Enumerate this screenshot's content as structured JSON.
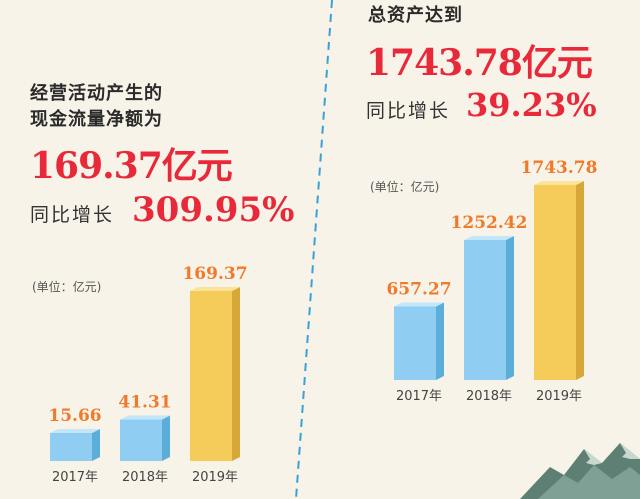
{
  "left": {
    "title_line1": "经营活动产生的",
    "title_line2": "现金流量净额为",
    "headline": "169.37亿元",
    "growth_label": "同比增长",
    "growth_value": "309.95%",
    "unit": "(单位：亿元)"
  },
  "right": {
    "title": "总资产达到",
    "headline": "1743.78亿元",
    "growth_label": "同比增长",
    "growth_value": "39.23%",
    "unit": "(单位：亿元)"
  },
  "colors": {
    "accent_red": "#e8293a",
    "value_orange": "#f07a2a",
    "bar_blue": "#8fcdf2",
    "bar_gold": "#f5cc5a",
    "divider_blue": "#3aa0d8"
  },
  "chart_data": [
    {
      "type": "bar",
      "title": "",
      "categories": [
        "2017年",
        "2018年",
        "2019年"
      ],
      "values": [
        15.66,
        41.31,
        169.37
      ],
      "value_labels": [
        "15.66",
        "41.31",
        "169.37"
      ],
      "ylabel": "(单位：亿元)",
      "xlabel": "",
      "grid": false,
      "legend": "none"
    },
    {
      "type": "bar",
      "title": "",
      "categories": [
        "2017年",
        "2018年",
        "2019年"
      ],
      "values": [
        657.27,
        1252.42,
        1743.78
      ],
      "value_labels": [
        "657.27",
        "1252.42",
        "1743.78"
      ],
      "ylabel": "(单位：亿元)",
      "xlabel": "",
      "grid": false,
      "legend": "none"
    }
  ]
}
